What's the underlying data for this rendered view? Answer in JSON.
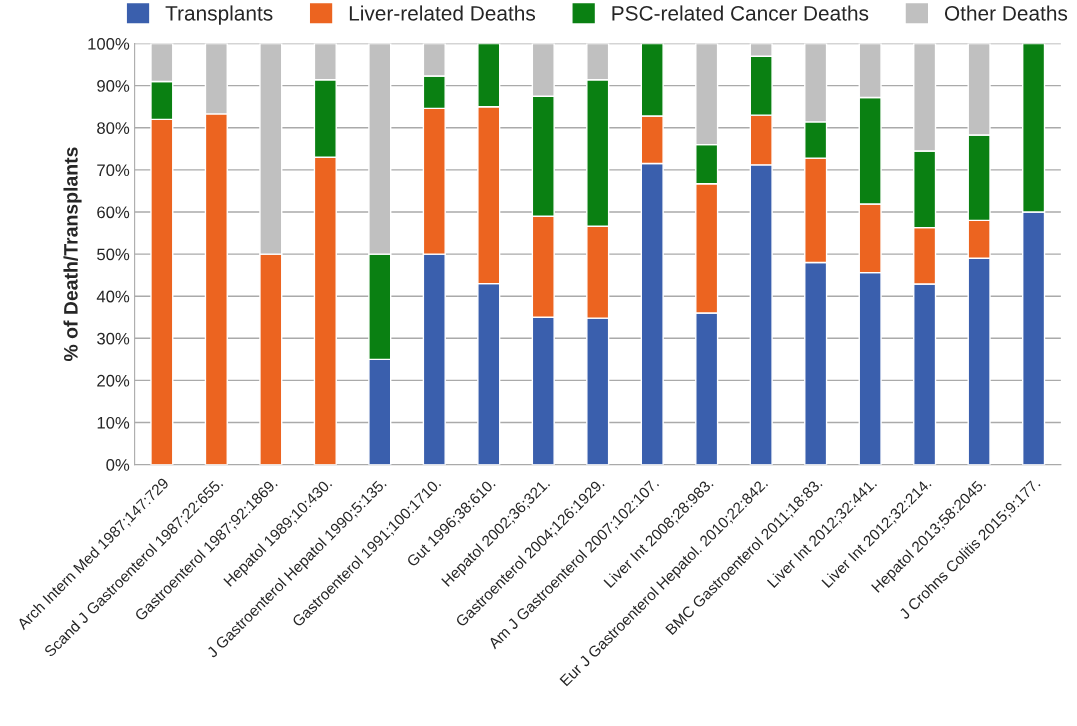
{
  "chart_data": {
    "type": "bar",
    "stacked": true,
    "ylabel": "% of Death/Transplants",
    "categories": [
      "Arch Intern Med 1987;147:729",
      "Scand J Gastroenterol 1987;22:655.",
      "Gastroenterol 1987;92:1869.",
      "Hepatol 1989;10:430.",
      "J Gastroenterol Hepatol 1990;5:135.",
      "Gastroenterol 1991;100:1710.",
      "Gut 1996;38:610.",
      "Hepatol 2002;36;321.",
      "Gastroenterol 2004;126:1929.",
      "Am J Gastroenterol 2007;102:107.",
      "Liver Int 2008;28:983.",
      "Eur J Gastroenterol Hepatol. 2010;22:842.",
      "BMC Gastroenterol 2011;18:83.",
      "Liver Int 2012;32:441.",
      "Liver Int 2012;32:214.",
      "Hepatol 2013;58:2045.",
      "J Crohns Colitis 2015;9:177."
    ],
    "series": [
      {
        "name": "Transplants",
        "color": "#3a5fad",
        "values": [
          null,
          null,
          null,
          null,
          25,
          50,
          43,
          35,
          34.8,
          71.5,
          36,
          71.2,
          48,
          45.6,
          42.9,
          49,
          60
        ]
      },
      {
        "name": "Liver-related Deaths",
        "color": "#ec6420",
        "values": [
          82,
          83.3,
          50,
          73,
          null,
          34.6,
          42,
          24,
          21.8,
          11.3,
          30.7,
          11.8,
          24.8,
          16.3,
          13.4,
          9,
          null
        ]
      },
      {
        "name": "PSC-related Cancer Deaths",
        "color": "#0a8012",
        "values": [
          9,
          null,
          null,
          18.4,
          25,
          7.7,
          15,
          28.5,
          34.8,
          17.2,
          9.3,
          14,
          8.6,
          25.3,
          18.2,
          20.3,
          40
        ]
      },
      {
        "name": "Other Deaths",
        "color": "#c0c0c0",
        "values": [
          9,
          16.7,
          50,
          8.6,
          50,
          7.7,
          null,
          12.5,
          8.6,
          null,
          24,
          3,
          18.6,
          12.8,
          25.5,
          21.7,
          null
        ]
      }
    ],
    "ylim": [
      0,
      100
    ],
    "yticks": [
      {
        "value": 0,
        "label": "0%"
      },
      {
        "value": 10,
        "label": "10%"
      },
      {
        "value": 20,
        "label": "20%"
      },
      {
        "value": 30,
        "label": "30%"
      },
      {
        "value": 40,
        "label": "40%"
      },
      {
        "value": 50,
        "label": "50%"
      },
      {
        "value": 60,
        "label": "60%"
      },
      {
        "value": 70,
        "label": "70%"
      },
      {
        "value": 80,
        "label": "80%"
      },
      {
        "value": 90,
        "label": "90%"
      },
      {
        "value": 100,
        "label": "100%"
      }
    ],
    "grid": "y",
    "legend": "top"
  }
}
